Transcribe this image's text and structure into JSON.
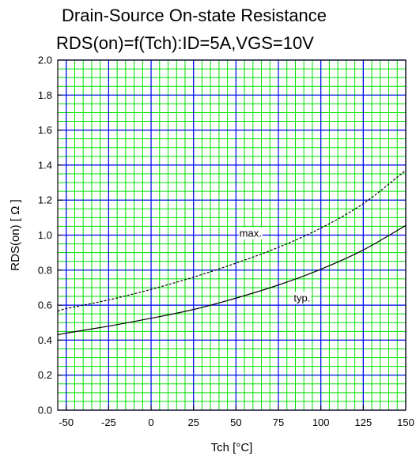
{
  "chart_data": {
    "type": "line",
    "title": [
      "Drain-Source On-state Resistance",
      "RDS(on)=f(Tch):ID=5A,VGS=10V"
    ],
    "xlabel": "Tch [°C]",
    "ylabel": "RDS(on) [ Ω ]",
    "xlim": [
      -55,
      150
    ],
    "ylim": [
      0,
      2.0
    ],
    "x_ticks": [
      -50,
      -25,
      0,
      25,
      50,
      75,
      100,
      125,
      150
    ],
    "x_tick_labels": [
      "-50",
      "-25",
      "0",
      "25",
      "50",
      "75",
      "100",
      "125",
      "150"
    ],
    "y_ticks": [
      0,
      0.2,
      0.4,
      0.6,
      0.8,
      1.0,
      1.2,
      1.4,
      1.6,
      1.8,
      2.0
    ],
    "y_tick_labels": [
      "0.0",
      "0.2",
      "0.4",
      "0.6",
      "0.8",
      "1.0",
      "1.2",
      "1.4",
      "1.6",
      "1.8",
      "2.0"
    ],
    "grid": true,
    "minor_grid": true,
    "series": [
      {
        "name": "max.",
        "style": "dashed",
        "color": "#000000",
        "x": [
          -55,
          -50,
          -25,
          0,
          25,
          50,
          75,
          100,
          125,
          150
        ],
        "y": [
          0.565,
          0.58,
          0.63,
          0.69,
          0.76,
          0.84,
          0.93,
          1.04,
          1.18,
          1.37
        ]
      },
      {
        "name": "typ.",
        "style": "solid",
        "color": "#000000",
        "x": [
          -55,
          -50,
          -25,
          0,
          25,
          50,
          75,
          100,
          125,
          150
        ],
        "y": [
          0.43,
          0.44,
          0.48,
          0.525,
          0.575,
          0.64,
          0.715,
          0.805,
          0.915,
          1.055
        ]
      }
    ],
    "annotations": [
      {
        "text": "max.",
        "x": 52,
        "y": 0.99
      },
      {
        "text": "typ.",
        "x": 84,
        "y": 0.62
      }
    ],
    "colors": {
      "major_grid": "#0000ff",
      "minor_grid": "#00e000",
      "background": "#ffffff",
      "curves": "#000000"
    }
  }
}
